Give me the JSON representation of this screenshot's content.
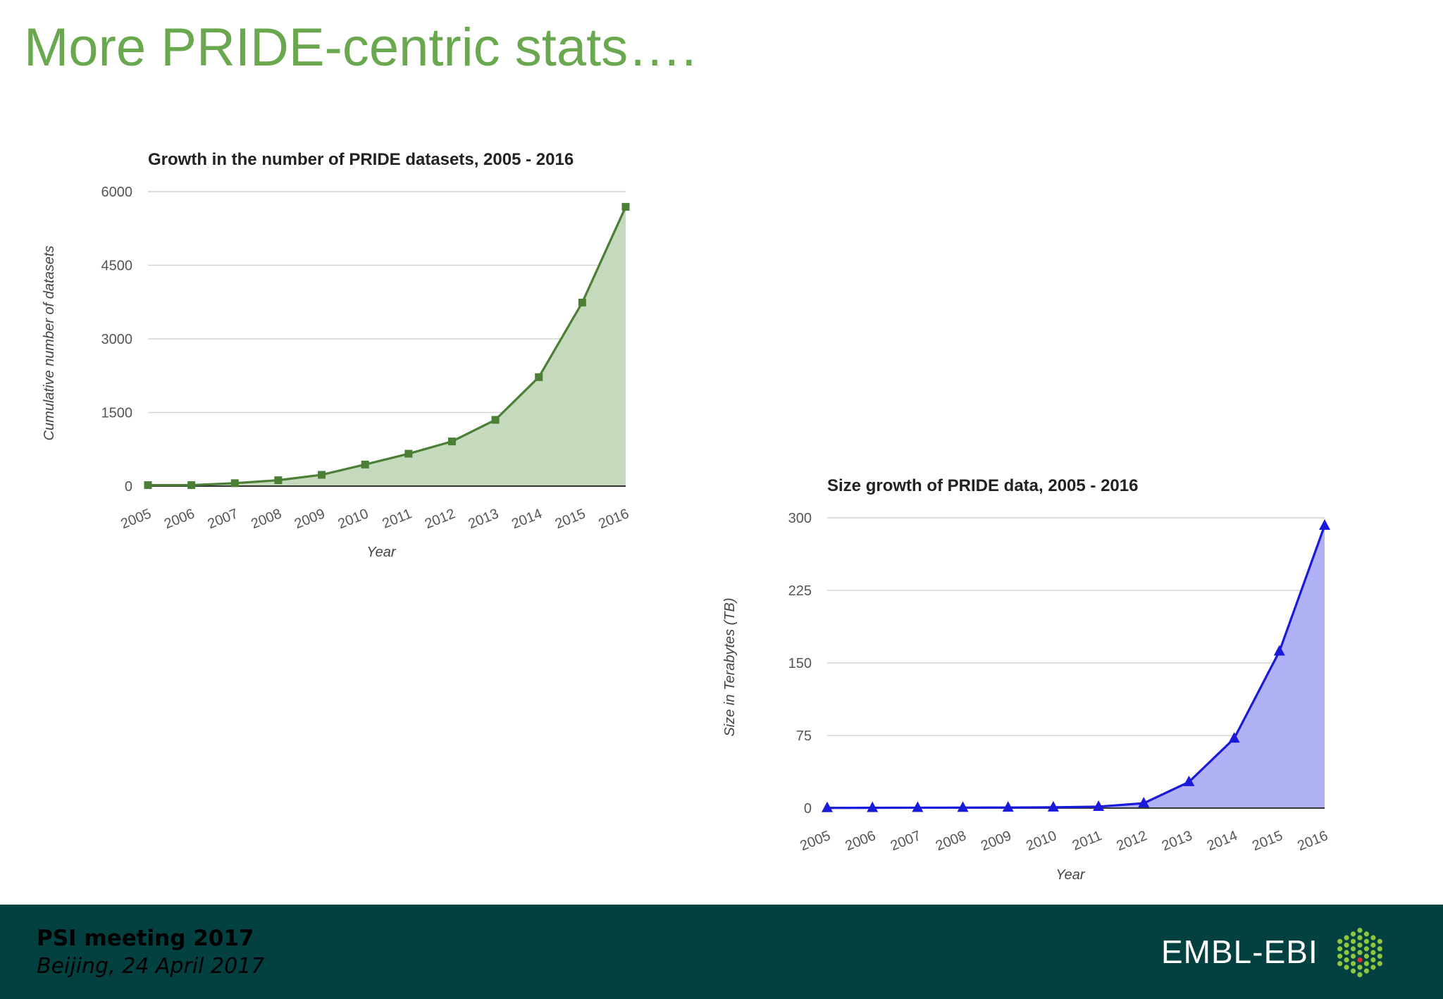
{
  "slide": {
    "title": "More PRIDE-centric stats….",
    "footer": {
      "event": "PSI meeting 2017",
      "date": "Beijing, 24 April 2017",
      "logo_text": "EMBL-EBI"
    }
  },
  "chart_data": [
    {
      "type": "area",
      "title": "Growth in the number of PRIDE datasets, 2005 - 2016",
      "xlabel": "Year",
      "ylabel": "Cumulative number of datasets",
      "categories": [
        "2005",
        "2006",
        "2007",
        "2008",
        "2009",
        "2010",
        "2011",
        "2012",
        "2013",
        "2014",
        "2015",
        "2016"
      ],
      "values": [
        20,
        20,
        60,
        120,
        230,
        440,
        660,
        910,
        1350,
        2220,
        3740,
        5690
      ],
      "ylim": [
        0,
        6000
      ],
      "yticks": [
        "0",
        "1500",
        "3000",
        "4500",
        "6000"
      ],
      "marker": "square",
      "colors": {
        "line": "#4a7f35",
        "fill": "#c5d9bd"
      },
      "grid": true
    },
    {
      "type": "area",
      "title": "Size growth of PRIDE data, 2005 - 2016",
      "xlabel": "Year",
      "ylabel": "Size in Terabytes (TB)",
      "categories": [
        "2005",
        "2006",
        "2007",
        "2008",
        "2009",
        "2010",
        "2011",
        "2012",
        "2013",
        "2014",
        "2015",
        "2016"
      ],
      "values": [
        0.2,
        0.3,
        0.4,
        0.5,
        0.6,
        0.8,
        1.5,
        5,
        27,
        72,
        162,
        292
      ],
      "ylim": [
        0,
        300
      ],
      "yticks": [
        "0",
        "75",
        "150",
        "225",
        "300"
      ],
      "marker": "triangle",
      "colors": {
        "line": "#1a1adb",
        "fill": "#b1b1f6"
      },
      "grid": true
    }
  ]
}
